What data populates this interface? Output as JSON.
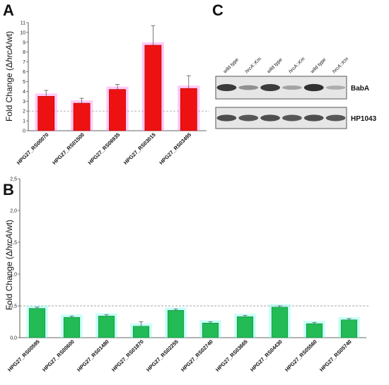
{
  "panelA": {
    "letter": "A",
    "ylabel_prefix": "Fold Change (Δ",
    "ylabel_gene": "hrcA",
    "ylabel_suffix": "/wt)",
    "chart_data": {
      "type": "bar",
      "categories": [
        "HPG27_RS00070",
        "HPG27_RS01500",
        "HPG27_RS06935",
        "HPG27_RS03015",
        "HPG27_RS03495"
      ],
      "values": [
        3.5,
        2.8,
        4.2,
        8.7,
        4.3
      ],
      "errors": [
        0.6,
        0.5,
        0.5,
        2.0,
        1.3
      ],
      "ylim": [
        0,
        11
      ],
      "yticks": [
        "0",
        "1",
        "2",
        "3",
        "4",
        "5",
        "6",
        "7",
        "8",
        "9",
        "10",
        "11"
      ],
      "threshold": 2,
      "bar_color": "#ee1111",
      "xlabel": "",
      "grid": false
    }
  },
  "panelB": {
    "letter": "B",
    "ylabel_prefix": "Fold Change (Δ",
    "ylabel_gene": "hrcA",
    "ylabel_suffix": "/wt)",
    "chart_data": {
      "type": "bar",
      "categories": [
        "HPG27_RS00595",
        "HPG27_RS00600",
        "HPG27_RS01480",
        "HPG27_RS01870",
        "HPG27_RS02255",
        "HPG27_RS02740",
        "HPG27_RS03665",
        "HPG27_RS04430",
        "HPG27_RS05560",
        "HPG27_RS05740"
      ],
      "values": [
        0.46,
        0.32,
        0.34,
        0.18,
        0.43,
        0.23,
        0.33,
        0.48,
        0.22,
        0.28
      ],
      "errors": [
        0.02,
        0.02,
        0.02,
        0.07,
        0.02,
        0.02,
        0.02,
        0.02,
        0.02,
        0.02
      ],
      "ylim": [
        0,
        2.5
      ],
      "yticks": [
        "0,0",
        "0,5",
        "1,0",
        "1,5",
        "2,0",
        "2,5"
      ],
      "threshold": 0.5,
      "bar_color": "#22bb55",
      "xlabel": "",
      "grid": false
    }
  },
  "panelC": {
    "letter": "C",
    "lanes": [
      "wild type",
      "hrcA::Km",
      "wild type",
      "hrcA::Km",
      "wild type",
      "hrcA::Km"
    ],
    "blots": [
      {
        "label": "BabA",
        "intensities": [
          0.85,
          0.4,
          0.85,
          0.3,
          0.9,
          0.25
        ]
      },
      {
        "label": "HP1043",
        "intensities": [
          0.75,
          0.7,
          0.75,
          0.7,
          0.75,
          0.7
        ]
      }
    ]
  }
}
